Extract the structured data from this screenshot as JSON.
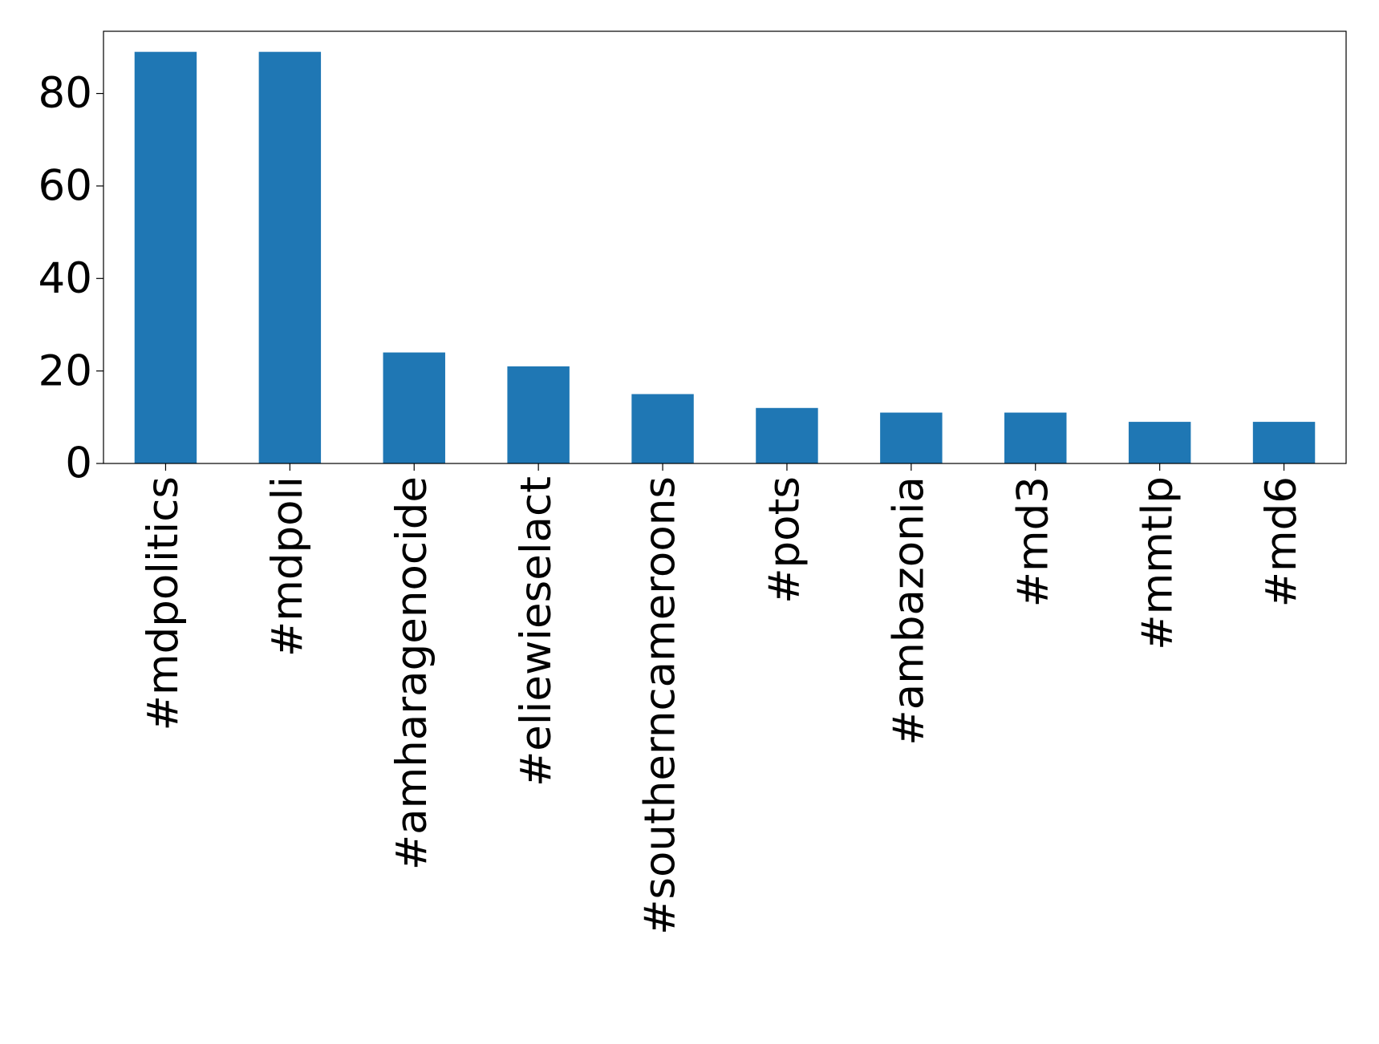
{
  "chart_data": {
    "type": "bar",
    "categories": [
      "#mdpolitics",
      "#mdpoli",
      "#amharagenocide",
      "#eliewieselact",
      "#southerncameroons",
      "#pots",
      "#ambazonia",
      "#md3",
      "#mmtlp",
      "#md6"
    ],
    "values": [
      89,
      89,
      24,
      21,
      15,
      12,
      11,
      11,
      9,
      9
    ],
    "color": "#1f77b4",
    "ylim": [
      0,
      93.45
    ],
    "yticks": [
      0,
      20,
      40,
      60,
      80
    ],
    "grid": false
  }
}
